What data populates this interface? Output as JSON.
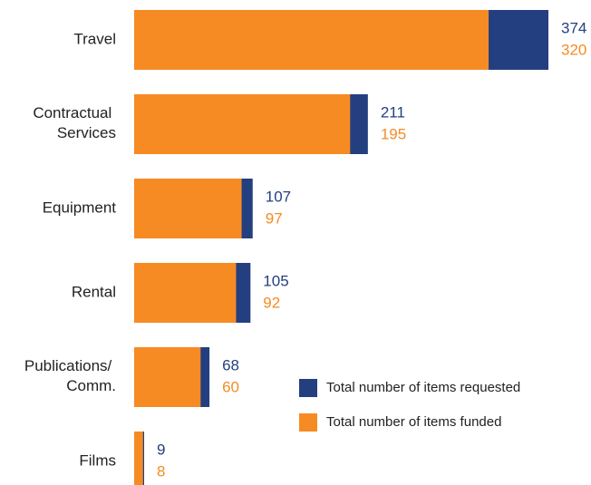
{
  "chart_data": {
    "type": "bar",
    "orientation": "horizontal",
    "categories": [
      "Travel",
      "Contractual Services",
      "Equipment",
      "Rental",
      "Publications/ Comm.",
      "Films"
    ],
    "series": [
      {
        "name": "Total number of items requested",
        "color": "#243f80",
        "values": [
          374,
          211,
          107,
          105,
          68,
          9
        ]
      },
      {
        "name": "Total number of items funded",
        "color": "#f68b24",
        "values": [
          320,
          195,
          97,
          92,
          60,
          8
        ]
      }
    ]
  }
}
